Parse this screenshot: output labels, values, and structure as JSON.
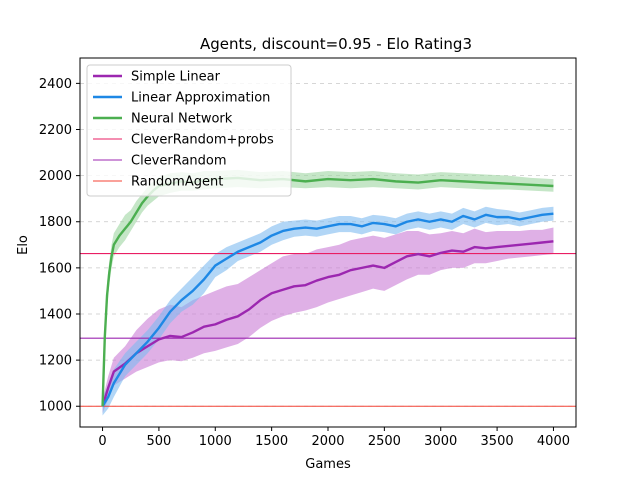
{
  "chart_data": {
    "type": "line",
    "title": "Agents, discount=0.95 - Elo Rating3",
    "xlabel": "Games",
    "ylabel": "Elo",
    "xlim": [
      -200,
      4200
    ],
    "ylim": [
      910,
      2510
    ],
    "xticks": [
      0,
      500,
      1000,
      1500,
      2000,
      2500,
      3000,
      3500,
      4000
    ],
    "yticks": [
      1000,
      1200,
      1400,
      1600,
      1800,
      2000,
      2200,
      2400
    ],
    "grid": "horizontal-dashed",
    "legend_position": "top-left",
    "series": [
      {
        "name": "Simple Linear",
        "color": "#9c27b0",
        "band_color": "#c97bd6",
        "x": [
          0,
          50,
          100,
          200,
          300,
          400,
          500,
          600,
          700,
          800,
          900,
          1000,
          1100,
          1200,
          1300,
          1400,
          1500,
          1600,
          1700,
          1800,
          1900,
          2000,
          2100,
          2200,
          2300,
          2400,
          2500,
          2600,
          2700,
          2800,
          2900,
          3000,
          3100,
          3200,
          3300,
          3400,
          3500,
          3600,
          3700,
          3800,
          3900,
          4000
        ],
        "values": [
          1000,
          1080,
          1150,
          1185,
          1230,
          1260,
          1290,
          1305,
          1300,
          1320,
          1345,
          1355,
          1375,
          1390,
          1420,
          1460,
          1490,
          1505,
          1520,
          1525,
          1545,
          1560,
          1570,
          1590,
          1600,
          1610,
          1600,
          1625,
          1650,
          1660,
          1650,
          1665,
          1675,
          1670,
          1690,
          1685,
          1690,
          1695,
          1700,
          1705,
          1710,
          1715
        ],
        "lower": [
          970,
          1030,
          1090,
          1120,
          1150,
          1170,
          1190,
          1200,
          1195,
          1210,
          1230,
          1240,
          1255,
          1270,
          1300,
          1340,
          1370,
          1390,
          1405,
          1415,
          1430,
          1450,
          1465,
          1480,
          1495,
          1510,
          1500,
          1525,
          1550,
          1570,
          1570,
          1590,
          1600,
          1600,
          1620,
          1620,
          1630,
          1640,
          1645,
          1650,
          1655,
          1660
        ],
        "upper": [
          1030,
          1130,
          1210,
          1260,
          1330,
          1380,
          1420,
          1440,
          1430,
          1460,
          1480,
          1500,
          1520,
          1530,
          1560,
          1590,
          1620,
          1650,
          1660,
          1660,
          1680,
          1690,
          1700,
          1720,
          1730,
          1740,
          1730,
          1745,
          1760,
          1760,
          1745,
          1750,
          1760,
          1750,
          1770,
          1755,
          1760,
          1760,
          1760,
          1765,
          1765,
          1775
        ]
      },
      {
        "name": "Linear Approximation",
        "color": "#1e88e5",
        "band_color": "#7fbbf0",
        "x": [
          0,
          50,
          100,
          200,
          300,
          400,
          500,
          600,
          700,
          800,
          900,
          1000,
          1100,
          1200,
          1300,
          1400,
          1500,
          1600,
          1700,
          1800,
          1900,
          2000,
          2100,
          2200,
          2300,
          2400,
          2500,
          2600,
          2700,
          2800,
          2900,
          3000,
          3100,
          3200,
          3300,
          3400,
          3500,
          3600,
          3700,
          3800,
          3900,
          4000
        ],
        "values": [
          1000,
          1040,
          1100,
          1180,
          1230,
          1280,
          1340,
          1410,
          1460,
          1500,
          1550,
          1610,
          1640,
          1670,
          1690,
          1710,
          1740,
          1760,
          1770,
          1775,
          1770,
          1780,
          1790,
          1790,
          1780,
          1795,
          1790,
          1780,
          1800,
          1810,
          1800,
          1810,
          1800,
          1825,
          1810,
          1830,
          1820,
          1820,
          1810,
          1820,
          1830,
          1835
        ],
        "lower": [
          960,
          990,
          1040,
          1130,
          1180,
          1230,
          1290,
          1360,
          1410,
          1440,
          1490,
          1560,
          1590,
          1630,
          1650,
          1670,
          1700,
          1720,
          1735,
          1740,
          1735,
          1745,
          1755,
          1755,
          1745,
          1760,
          1755,
          1745,
          1765,
          1775,
          1765,
          1775,
          1765,
          1790,
          1775,
          1795,
          1785,
          1790,
          1780,
          1790,
          1800,
          1805
        ],
        "upper": [
          1040,
          1090,
          1160,
          1230,
          1280,
          1330,
          1390,
          1460,
          1510,
          1560,
          1610,
          1660,
          1690,
          1710,
          1730,
          1750,
          1780,
          1800,
          1805,
          1810,
          1805,
          1815,
          1825,
          1825,
          1815,
          1830,
          1825,
          1815,
          1835,
          1845,
          1835,
          1845,
          1835,
          1860,
          1845,
          1865,
          1855,
          1850,
          1840,
          1850,
          1860,
          1865
        ]
      },
      {
        "name": "Neural Network",
        "color": "#4caf50",
        "band_color": "#9fd6a1",
        "x": [
          0,
          20,
          40,
          60,
          80,
          100,
          150,
          200,
          250,
          300,
          350,
          400,
          450,
          500,
          600,
          700,
          800,
          900,
          1000,
          1200,
          1400,
          1600,
          1800,
          2000,
          2200,
          2400,
          2600,
          2800,
          3000,
          3200,
          3400,
          3600,
          3800,
          4000
        ],
        "values": [
          1000,
          1300,
          1480,
          1580,
          1650,
          1700,
          1740,
          1770,
          1800,
          1840,
          1880,
          1910,
          1935,
          1955,
          1965,
          1975,
          1970,
          1980,
          1985,
          1990,
          1980,
          1985,
          1975,
          1985,
          1980,
          1985,
          1975,
          1970,
          1980,
          1975,
          1970,
          1965,
          1960,
          1955
        ],
        "lower": [
          990,
          1240,
          1420,
          1530,
          1600,
          1650,
          1690,
          1720,
          1760,
          1800,
          1840,
          1870,
          1890,
          1910,
          1925,
          1935,
          1935,
          1940,
          1945,
          1950,
          1945,
          1950,
          1945,
          1950,
          1945,
          1950,
          1945,
          1940,
          1950,
          1945,
          1940,
          1940,
          1935,
          1930
        ],
        "upper": [
          1010,
          1360,
          1540,
          1630,
          1700,
          1750,
          1790,
          1830,
          1850,
          1890,
          1920,
          1950,
          1975,
          1995,
          2010,
          2015,
          2010,
          2020,
          2020,
          2025,
          2015,
          2020,
          2010,
          2020,
          2015,
          2020,
          2010,
          2005,
          2015,
          2010,
          2005,
          2000,
          1990,
          1985
        ]
      }
    ],
    "reference_lines": [
      {
        "name": "CleverRandom+probs",
        "color": "#e91e63",
        "value": 1662
      },
      {
        "name": "CleverRandom",
        "color": "#9c27b0",
        "value": 1295
      },
      {
        "name": "RandomAgent",
        "color": "#f44336",
        "value": 1000
      }
    ]
  }
}
